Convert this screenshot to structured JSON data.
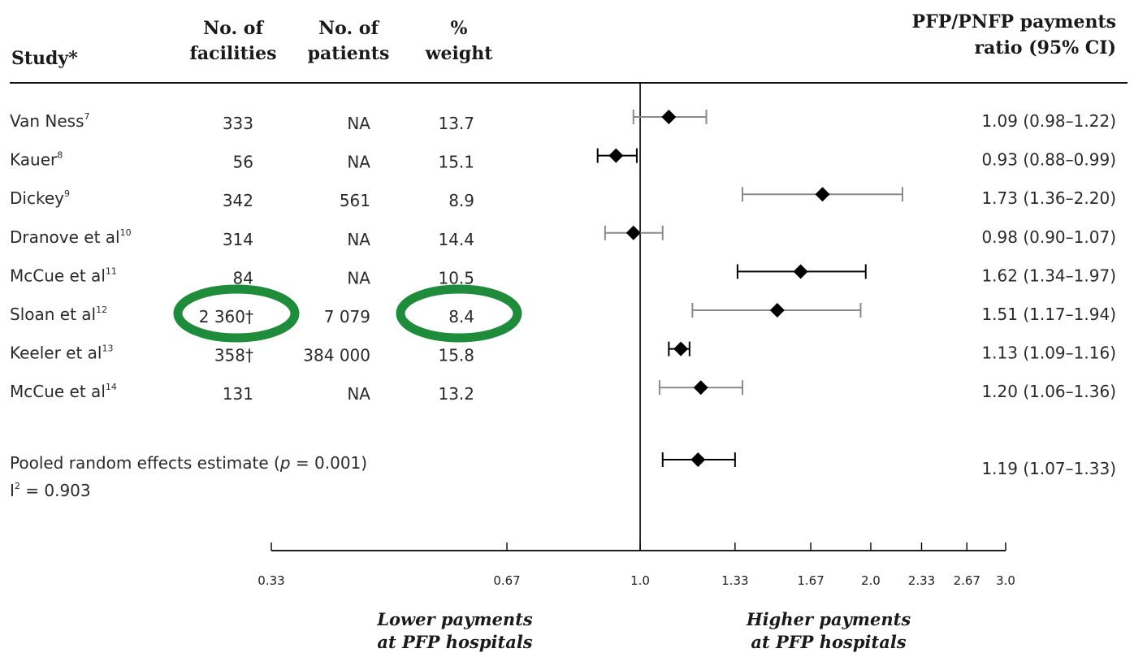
{
  "headers": {
    "study": "Study*",
    "facilities": [
      "No. of",
      "facilities"
    ],
    "patients": [
      "No. of",
      "patients"
    ],
    "weight": [
      "%",
      "weight"
    ],
    "ratio": [
      "PFP/PNFP payments",
      "ratio (95% CI)"
    ]
  },
  "rows": [
    {
      "name": "Van Ness",
      "ref": "7",
      "facilities": "333",
      "patients": "NA",
      "weight": "13.7",
      "ci_text": "1.09 (0.98–1.22)",
      "bar": "gray"
    },
    {
      "name": "Kauer",
      "ref": "8",
      "facilities": "56",
      "patients": "NA",
      "weight": "15.1",
      "ci_text": "0.93 (0.88–0.99)",
      "bar": "black"
    },
    {
      "name": "Dickey",
      "ref": "9",
      "facilities": "342",
      "patients": "561",
      "weight": "8.9",
      "ci_text": "1.73 (1.36–2.20)",
      "bar": "gray"
    },
    {
      "name": "Dranove et al",
      "ref": "10",
      "facilities": "314",
      "patients": "NA",
      "weight": "14.4",
      "ci_text": "0.98 (0.90–1.07)",
      "bar": "gray"
    },
    {
      "name": "McCue et al",
      "ref": "11",
      "facilities": "84",
      "patients": "NA",
      "weight": "10.5",
      "ci_text": "1.62 (1.34–1.97)",
      "bar": "black"
    },
    {
      "name": "Sloan et al",
      "ref": "12",
      "facilities": "2 360†",
      "patients": "7 079",
      "weight": "8.4",
      "ci_text": "1.51 (1.17–1.94)",
      "bar": "gray"
    },
    {
      "name": "Keeler et al",
      "ref": "13",
      "facilities": "358†",
      "patients": "384 000",
      "weight": "15.8",
      "ci_text": "1.13 (1.09–1.16)",
      "bar": "black"
    },
    {
      "name": "McCue et al",
      "ref": "14",
      "facilities": "131",
      "patients": "NA",
      "weight": "13.2",
      "ci_text": "1.20 (1.06–1.36)",
      "bar": "gray"
    }
  ],
  "pooled": {
    "label_pre": "Pooled random effects estimate (",
    "label_p": "p",
    "label_post": " = 0.001)",
    "i2_pre": "I",
    "i2_sup": "2",
    "i2_post": " = 0.903",
    "ci_text": "1.19 (1.07–1.33)"
  },
  "footer": {
    "left": [
      "Lower payments",
      "at PFP hospitals"
    ],
    "right": [
      "Higher payments",
      "at PFP hospitals"
    ]
  },
  "colors": {
    "highlight": "#1e8c3a",
    "gray_bar": "#8a8a8a",
    "black_bar": "#000000"
  },
  "chart_data": {
    "type": "scatter",
    "subtype": "forest-plot",
    "scale": "log",
    "xlim": [
      0.33,
      3.0
    ],
    "reference_line": 1.0,
    "tick_labels": [
      "0.33",
      "0.67",
      "1.0",
      "1.33",
      "1.67",
      "2.0",
      "2.33",
      "2.67",
      "3.0"
    ],
    "tick_values": [
      0.33,
      0.67,
      1.0,
      1.33,
      1.67,
      2.0,
      2.33,
      2.67,
      3.0
    ],
    "points": [
      {
        "estimate": 1.09,
        "low": 0.98,
        "high": 1.22
      },
      {
        "estimate": 0.93,
        "low": 0.88,
        "high": 0.99
      },
      {
        "estimate": 1.73,
        "low": 1.36,
        "high": 2.2
      },
      {
        "estimate": 0.98,
        "low": 0.9,
        "high": 1.07
      },
      {
        "estimate": 1.62,
        "low": 1.34,
        "high": 1.97
      },
      {
        "estimate": 1.51,
        "low": 1.17,
        "high": 1.94
      },
      {
        "estimate": 1.13,
        "low": 1.09,
        "high": 1.16
      },
      {
        "estimate": 1.2,
        "low": 1.06,
        "high": 1.36
      }
    ],
    "pooled": {
      "estimate": 1.19,
      "low": 1.07,
      "high": 1.33
    }
  }
}
